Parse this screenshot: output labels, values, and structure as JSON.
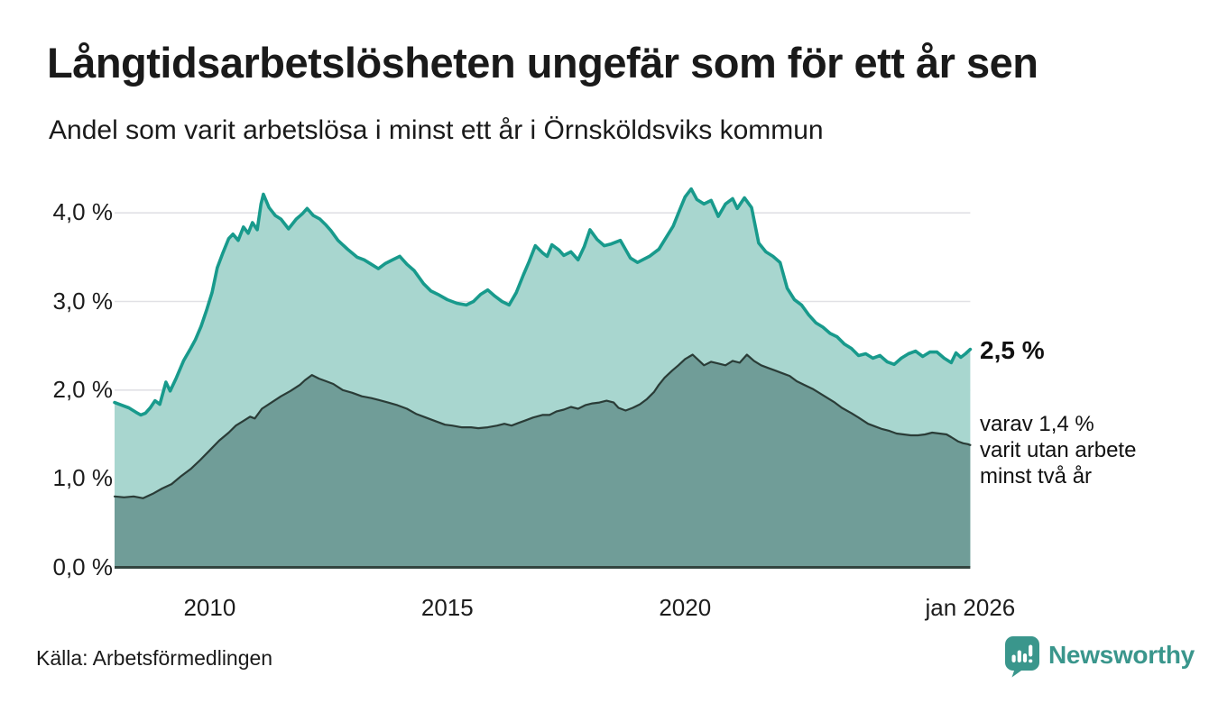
{
  "header": {
    "title": "Långtidsarbetslösheten ungefär som för ett år sen",
    "subtitle": "Andel som varit arbetslösa i minst ett år i Örnsköldsviks kommun"
  },
  "annotations": {
    "latest_value": "2,5 %",
    "secondary_line1": "varav 1,4 %",
    "secondary_line2": "varit utan arbete",
    "secondary_line3": "minst två år"
  },
  "footer": {
    "source": "Källa: Arbetsförmedlingen",
    "brand": "Newsworthy",
    "brand_icon": "newsworthy-speech-bubble-bar-chart-icon"
  },
  "colors": {
    "teal_line": "#189a8c",
    "light_fill": "#a8d6cf",
    "dark_fill": "#709d98",
    "dark_line": "#2a3c37",
    "grid": "#e1e1e5",
    "baseline": "#32443f",
    "brand": "#3a968c",
    "text": "#1a1a1a"
  },
  "chart_data": {
    "type": "area",
    "title": "Långtidsarbetslösheten ungefär som för ett år sen",
    "subtitle": "Andel som varit arbetslösa i minst ett år i Örnsköldsviks kommun",
    "grid": true,
    "legend_position": "none",
    "x_axis": {
      "range": [
        2008,
        2026
      ],
      "ticks": [
        {
          "year": 2010,
          "label": "2010"
        },
        {
          "year": 2015,
          "label": "2015"
        },
        {
          "year": 2020,
          "label": "2020"
        },
        {
          "year": 2026,
          "label": "jan 2026"
        }
      ]
    },
    "y_axis": {
      "range": [
        0,
        4.4
      ],
      "unit": "%",
      "ticks": [
        {
          "value": 4.0,
          "label": "4,0 %"
        },
        {
          "value": 3.0,
          "label": "3,0 %"
        },
        {
          "value": 2.0,
          "label": "2,0 %"
        },
        {
          "value": 1.0,
          "label": "1,0 %"
        },
        {
          "value": 0.0,
          "label": "0,0 %"
        }
      ]
    },
    "series": [
      {
        "id": "share-unemployed-min-one-year",
        "name": "Arbetslösa minst ett år",
        "stroke": "#189a8c",
        "fill": "#a8d6cf",
        "end_label": "2,5 %",
        "points": [
          [
            2008.0,
            1.86
          ],
          [
            2008.15,
            1.83
          ],
          [
            2008.3,
            1.8
          ],
          [
            2008.45,
            1.75
          ],
          [
            2008.55,
            1.72
          ],
          [
            2008.65,
            1.74
          ],
          [
            2008.75,
            1.8
          ],
          [
            2008.85,
            1.88
          ],
          [
            2008.95,
            1.84
          ],
          [
            2009.08,
            2.09
          ],
          [
            2009.17,
            1.99
          ],
          [
            2009.3,
            2.14
          ],
          [
            2009.45,
            2.33
          ],
          [
            2009.6,
            2.47
          ],
          [
            2009.7,
            2.57
          ],
          [
            2009.82,
            2.72
          ],
          [
            2009.94,
            2.91
          ],
          [
            2010.05,
            3.1
          ],
          [
            2010.16,
            3.38
          ],
          [
            2010.28,
            3.55
          ],
          [
            2010.4,
            3.71
          ],
          [
            2010.49,
            3.76
          ],
          [
            2010.6,
            3.69
          ],
          [
            2010.71,
            3.84
          ],
          [
            2010.81,
            3.77
          ],
          [
            2010.9,
            3.89
          ],
          [
            2011.0,
            3.81
          ],
          [
            2011.08,
            4.1
          ],
          [
            2011.13,
            4.21
          ],
          [
            2011.25,
            4.06
          ],
          [
            2011.38,
            3.97
          ],
          [
            2011.5,
            3.93
          ],
          [
            2011.66,
            3.82
          ],
          [
            2011.82,
            3.93
          ],
          [
            2011.95,
            3.99
          ],
          [
            2012.05,
            4.05
          ],
          [
            2012.18,
            3.97
          ],
          [
            2012.32,
            3.93
          ],
          [
            2012.45,
            3.86
          ],
          [
            2012.55,
            3.8
          ],
          [
            2012.7,
            3.69
          ],
          [
            2012.9,
            3.59
          ],
          [
            2013.1,
            3.5
          ],
          [
            2013.25,
            3.47
          ],
          [
            2013.4,
            3.42
          ],
          [
            2013.55,
            3.37
          ],
          [
            2013.7,
            3.43
          ],
          [
            2013.85,
            3.47
          ],
          [
            2014.0,
            3.51
          ],
          [
            2014.15,
            3.42
          ],
          [
            2014.3,
            3.35
          ],
          [
            2014.5,
            3.2
          ],
          [
            2014.65,
            3.12
          ],
          [
            2014.8,
            3.08
          ],
          [
            2015.0,
            3.02
          ],
          [
            2015.2,
            2.98
          ],
          [
            2015.4,
            2.96
          ],
          [
            2015.55,
            3.0
          ],
          [
            2015.7,
            3.08
          ],
          [
            2015.85,
            3.13
          ],
          [
            2016.0,
            3.06
          ],
          [
            2016.15,
            3.0
          ],
          [
            2016.3,
            2.96
          ],
          [
            2016.45,
            3.1
          ],
          [
            2016.6,
            3.3
          ],
          [
            2016.72,
            3.45
          ],
          [
            2016.85,
            3.63
          ],
          [
            2017.0,
            3.55
          ],
          [
            2017.1,
            3.51
          ],
          [
            2017.2,
            3.64
          ],
          [
            2017.35,
            3.58
          ],
          [
            2017.45,
            3.52
          ],
          [
            2017.6,
            3.56
          ],
          [
            2017.75,
            3.47
          ],
          [
            2017.88,
            3.62
          ],
          [
            2018.0,
            3.81
          ],
          [
            2018.15,
            3.7
          ],
          [
            2018.3,
            3.63
          ],
          [
            2018.45,
            3.65
          ],
          [
            2018.64,
            3.69
          ],
          [
            2018.85,
            3.49
          ],
          [
            2019.0,
            3.44
          ],
          [
            2019.25,
            3.51
          ],
          [
            2019.45,
            3.59
          ],
          [
            2019.6,
            3.72
          ],
          [
            2019.75,
            3.85
          ],
          [
            2019.9,
            4.05
          ],
          [
            2020.0,
            4.18
          ],
          [
            2020.13,
            4.27
          ],
          [
            2020.25,
            4.15
          ],
          [
            2020.4,
            4.1
          ],
          [
            2020.55,
            4.14
          ],
          [
            2020.7,
            3.96
          ],
          [
            2020.85,
            4.1
          ],
          [
            2021.0,
            4.16
          ],
          [
            2021.1,
            4.05
          ],
          [
            2021.25,
            4.17
          ],
          [
            2021.4,
            4.06
          ],
          [
            2021.55,
            3.66
          ],
          [
            2021.7,
            3.56
          ],
          [
            2021.85,
            3.51
          ],
          [
            2022.0,
            3.44
          ],
          [
            2022.15,
            3.15
          ],
          [
            2022.3,
            3.02
          ],
          [
            2022.45,
            2.96
          ],
          [
            2022.6,
            2.85
          ],
          [
            2022.75,
            2.76
          ],
          [
            2022.9,
            2.71
          ],
          [
            2023.05,
            2.64
          ],
          [
            2023.2,
            2.6
          ],
          [
            2023.35,
            2.52
          ],
          [
            2023.5,
            2.47
          ],
          [
            2023.65,
            2.39
          ],
          [
            2023.8,
            2.41
          ],
          [
            2023.95,
            2.36
          ],
          [
            2024.1,
            2.39
          ],
          [
            2024.25,
            2.32
          ],
          [
            2024.4,
            2.29
          ],
          [
            2024.55,
            2.36
          ],
          [
            2024.7,
            2.41
          ],
          [
            2024.85,
            2.44
          ],
          [
            2025.0,
            2.38
          ],
          [
            2025.15,
            2.43
          ],
          [
            2025.3,
            2.43
          ],
          [
            2025.45,
            2.36
          ],
          [
            2025.6,
            2.31
          ],
          [
            2025.7,
            2.42
          ],
          [
            2025.8,
            2.37
          ],
          [
            2025.9,
            2.41
          ],
          [
            2026.0,
            2.46
          ]
        ]
      },
      {
        "id": "share-unemployed-min-two-years",
        "name": "Arbetslösa minst två år",
        "stroke": "#2a3c37",
        "fill": "#709d98",
        "end_label": "varav 1,4 % varit utan arbete minst två år",
        "points": [
          [
            2008.0,
            0.8
          ],
          [
            2008.2,
            0.79
          ],
          [
            2008.4,
            0.8
          ],
          [
            2008.6,
            0.78
          ],
          [
            2008.8,
            0.83
          ],
          [
            2009.0,
            0.89
          ],
          [
            2009.2,
            0.94
          ],
          [
            2009.4,
            1.03
          ],
          [
            2009.6,
            1.11
          ],
          [
            2009.8,
            1.21
          ],
          [
            2010.0,
            1.32
          ],
          [
            2010.2,
            1.43
          ],
          [
            2010.4,
            1.52
          ],
          [
            2010.55,
            1.6
          ],
          [
            2010.7,
            1.65
          ],
          [
            2010.85,
            1.7
          ],
          [
            2010.95,
            1.68
          ],
          [
            2011.1,
            1.79
          ],
          [
            2011.3,
            1.86
          ],
          [
            2011.5,
            1.93
          ],
          [
            2011.7,
            1.99
          ],
          [
            2011.9,
            2.06
          ],
          [
            2012.0,
            2.11
          ],
          [
            2012.15,
            2.17
          ],
          [
            2012.3,
            2.13
          ],
          [
            2012.45,
            2.1
          ],
          [
            2012.6,
            2.07
          ],
          [
            2012.8,
            2.0
          ],
          [
            2013.0,
            1.97
          ],
          [
            2013.2,
            1.93
          ],
          [
            2013.4,
            1.91
          ],
          [
            2013.55,
            1.89
          ],
          [
            2013.75,
            1.86
          ],
          [
            2013.95,
            1.83
          ],
          [
            2014.15,
            1.79
          ],
          [
            2014.35,
            1.73
          ],
          [
            2014.55,
            1.69
          ],
          [
            2014.75,
            1.65
          ],
          [
            2014.95,
            1.61
          ],
          [
            2015.1,
            1.6
          ],
          [
            2015.3,
            1.58
          ],
          [
            2015.5,
            1.58
          ],
          [
            2015.65,
            1.57
          ],
          [
            2015.85,
            1.58
          ],
          [
            2016.05,
            1.6
          ],
          [
            2016.2,
            1.62
          ],
          [
            2016.35,
            1.6
          ],
          [
            2016.5,
            1.63
          ],
          [
            2016.65,
            1.66
          ],
          [
            2016.8,
            1.69
          ],
          [
            2017.0,
            1.72
          ],
          [
            2017.15,
            1.72
          ],
          [
            2017.3,
            1.76
          ],
          [
            2017.45,
            1.78
          ],
          [
            2017.6,
            1.81
          ],
          [
            2017.75,
            1.79
          ],
          [
            2017.9,
            1.83
          ],
          [
            2018.05,
            1.85
          ],
          [
            2018.2,
            1.86
          ],
          [
            2018.35,
            1.88
          ],
          [
            2018.5,
            1.86
          ],
          [
            2018.6,
            1.8
          ],
          [
            2018.75,
            1.77
          ],
          [
            2018.9,
            1.8
          ],
          [
            2019.05,
            1.84
          ],
          [
            2019.2,
            1.9
          ],
          [
            2019.35,
            1.98
          ],
          [
            2019.45,
            2.06
          ],
          [
            2019.57,
            2.14
          ],
          [
            2019.73,
            2.22
          ],
          [
            2019.86,
            2.28
          ],
          [
            2020.0,
            2.35
          ],
          [
            2020.16,
            2.4
          ],
          [
            2020.3,
            2.33
          ],
          [
            2020.4,
            2.28
          ],
          [
            2020.55,
            2.32
          ],
          [
            2020.7,
            2.3
          ],
          [
            2020.85,
            2.28
          ],
          [
            2021.0,
            2.33
          ],
          [
            2021.15,
            2.31
          ],
          [
            2021.3,
            2.4
          ],
          [
            2021.45,
            2.33
          ],
          [
            2021.6,
            2.28
          ],
          [
            2021.75,
            2.25
          ],
          [
            2021.9,
            2.22
          ],
          [
            2022.05,
            2.19
          ],
          [
            2022.2,
            2.16
          ],
          [
            2022.35,
            2.1
          ],
          [
            2022.5,
            2.06
          ],
          [
            2022.7,
            2.01
          ],
          [
            2022.85,
            1.96
          ],
          [
            2023.0,
            1.91
          ],
          [
            2023.15,
            1.86
          ],
          [
            2023.3,
            1.8
          ],
          [
            2023.5,
            1.74
          ],
          [
            2023.65,
            1.69
          ],
          [
            2023.85,
            1.62
          ],
          [
            2024.0,
            1.59
          ],
          [
            2024.15,
            1.56
          ],
          [
            2024.3,
            1.54
          ],
          [
            2024.45,
            1.51
          ],
          [
            2024.6,
            1.5
          ],
          [
            2024.75,
            1.49
          ],
          [
            2024.9,
            1.49
          ],
          [
            2025.05,
            1.5
          ],
          [
            2025.2,
            1.52
          ],
          [
            2025.35,
            1.51
          ],
          [
            2025.5,
            1.5
          ],
          [
            2025.6,
            1.47
          ],
          [
            2025.75,
            1.42
          ],
          [
            2025.85,
            1.4
          ],
          [
            2025.95,
            1.39
          ],
          [
            2026.0,
            1.38
          ]
        ]
      }
    ]
  }
}
